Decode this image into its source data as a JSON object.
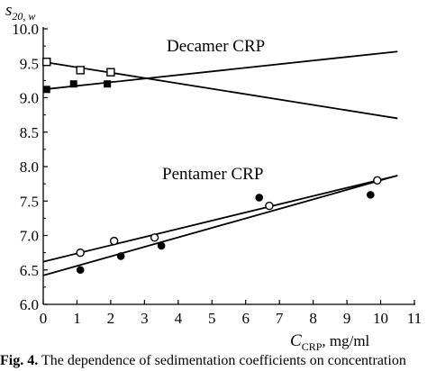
{
  "chart_data": {
    "type": "scatter",
    "title": "",
    "xlabel": "C_CRP, mg/ml",
    "xlabel_main": "C",
    "xlabel_sub": "CRP",
    "xlabel_unit": ", mg/ml",
    "ylabel": "s20,w",
    "ylabel_main": "s",
    "ylabel_sub": "20, w",
    "xlim": [
      0,
      11
    ],
    "ylim": [
      6.0,
      10.0
    ],
    "xticks": [
      "0",
      "1",
      "2",
      "3",
      "4",
      "5",
      "6",
      "7",
      "8",
      "9",
      "10",
      "11"
    ],
    "yticks": [
      "6.0",
      "6.5",
      "7.0",
      "7.5",
      "8.0",
      "8.5",
      "9.0",
      "9.5",
      "10.0"
    ],
    "grid": false,
    "annotations": [
      {
        "label": "Decamer CRP"
      },
      {
        "label": "Pentamer CRP"
      }
    ],
    "series": [
      {
        "marker": "open-square",
        "x": [
          0.1,
          1.1,
          2.0
        ],
        "y": [
          9.52,
          9.4,
          9.37
        ]
      },
      {
        "marker": "filled-square",
        "x": [
          0.1,
          0.9,
          1.9
        ],
        "y": [
          9.12,
          9.2,
          9.2
        ]
      },
      {
        "marker": "open-circle",
        "x": [
          1.1,
          2.1,
          3.3,
          6.7,
          9.9
        ],
        "y": [
          6.75,
          6.92,
          6.97,
          7.43,
          7.8
        ]
      },
      {
        "marker": "filled-circle",
        "x": [
          1.1,
          2.3,
          3.5,
          6.4,
          9.7
        ],
        "y": [
          6.5,
          6.7,
          6.85,
          7.55,
          7.59
        ]
      }
    ],
    "fit_lines": [
      {
        "marker": "open-square",
        "x": [
          0,
          10.5
        ],
        "y": [
          9.52,
          8.7
        ]
      },
      {
        "marker": "filled-square",
        "x": [
          0,
          10.5
        ],
        "y": [
          9.12,
          9.67
        ]
      },
      {
        "marker": "open-circle",
        "x": [
          0,
          10.5
        ],
        "y": [
          6.62,
          7.87
        ]
      },
      {
        "marker": "filled-circle",
        "x": [
          0,
          10.5
        ],
        "y": [
          6.42,
          7.87
        ]
      }
    ]
  },
  "caption": {
    "fig_label": "Fig. 4.",
    "text": "The dependence of sedimentation coefficients on concentration"
  }
}
